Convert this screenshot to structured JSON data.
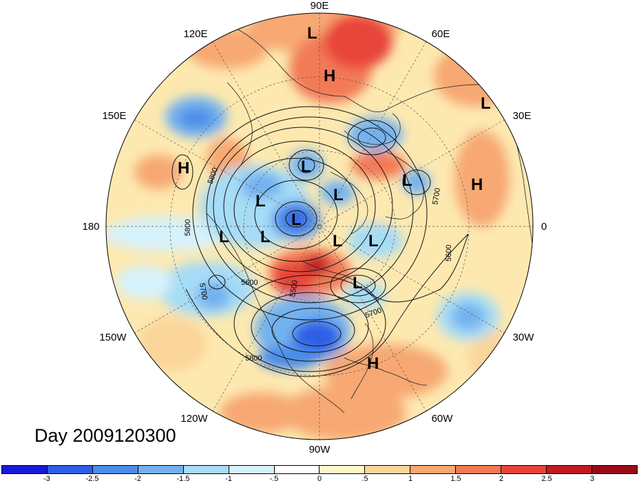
{
  "map": {
    "projection": "north-polar-stereographic",
    "field_shaded": "anomaly",
    "field_contoured": "500hPa geopotential height"
  },
  "title": "Day 2009120300",
  "longitude_labels": [
    "90E",
    "60E",
    "30E",
    "0",
    "30W",
    "60W",
    "90W",
    "120W",
    "150W",
    "180",
    "150E",
    "120E"
  ],
  "contour_labels": [
    "5800",
    "5700",
    "5600",
    "5500",
    "5800",
    "5700",
    "5800",
    "5700",
    "5600"
  ],
  "pressure_centers": [
    "L",
    "H",
    "L",
    "H",
    "L",
    "L",
    "L",
    "L",
    "L",
    "L",
    "L",
    "L",
    "L",
    "L",
    "H",
    "H"
  ],
  "colorbar": {
    "labels": [
      "-3",
      "-2.5",
      "-2",
      "-1.5",
      "-1",
      "-.5",
      "0",
      ".5",
      "1",
      "1.5",
      "2",
      "2.5",
      "3"
    ],
    "colors": [
      "#1919d8",
      "#2e5fe6",
      "#4b8de8",
      "#73b2ef",
      "#a6dcf6",
      "#d6f2fb",
      "#ffffff",
      "#fff6c8",
      "#fbd59a",
      "#f7a873",
      "#f27a57",
      "#e8443b",
      "#c11a22",
      "#9b0a1a"
    ]
  }
}
